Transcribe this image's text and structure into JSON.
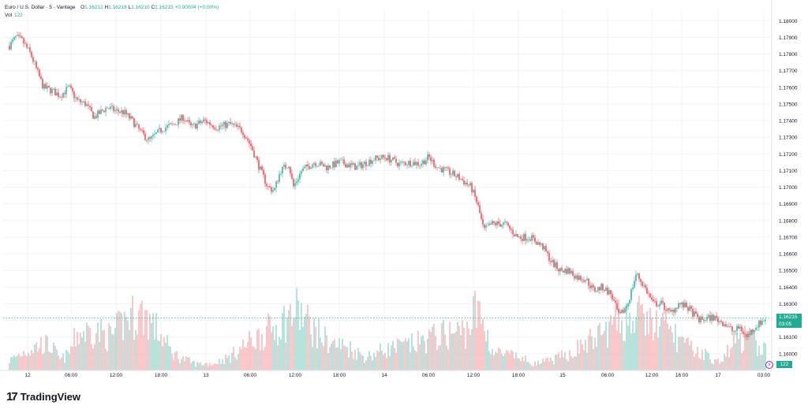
{
  "legend": {
    "symbol_title": "Euro / U.S. Dollar · 5 · Vantage",
    "open_label": "O",
    "open_value": "1.16212",
    "high_label": "H",
    "high_value": "1.16218",
    "low_label": "L",
    "low_value": "1.16210",
    "close_label": "C",
    "close_value": "1.16215",
    "change_value": "+0.00004 (+0.00%)",
    "volume_label": "Vol",
    "volume_value": "122"
  },
  "current_price": {
    "price": "1.16215",
    "countdown": "03:05",
    "volume": "122"
  },
  "branding": {
    "logo_mark": "17",
    "logo_text": "TradingView"
  },
  "colors": {
    "up": "#22ab94",
    "down": "#f23645",
    "up_vol": "#a7dcd3",
    "down_vol": "#f8b9bd",
    "grid": "#f0f3fa",
    "axis_text": "#131722",
    "last_price_line": "#22ab94",
    "flash_icon": "#9c27b0"
  },
  "icons": {
    "flash": "lightning-icon"
  },
  "chart_data": {
    "type": "candlestick",
    "title": "Euro / U.S. Dollar · 5 · Vantage",
    "xlabel": "",
    "ylabel": "",
    "y_ticks": [
      "1.18000",
      "1.17900",
      "1.17800",
      "1.17700",
      "1.17600",
      "1.17500",
      "1.17400",
      "1.17300",
      "1.17200",
      "1.17100",
      "1.17000",
      "1.16900",
      "1.16800",
      "1.16700",
      "1.16600",
      "1.16500",
      "1.16400",
      "1.16300",
      "1.16200",
      "1.16100",
      "1.16000"
    ],
    "y_range": [
      1.15985,
      1.18025
    ],
    "x_ticks": [
      "12",
      "06:00",
      "12:00",
      "18:00",
      "13",
      "06:00",
      "12:00",
      "18:00",
      "14",
      "06:00",
      "12:00",
      "18:00",
      "15",
      "06:00",
      "12:00",
      "16:00",
      "17",
      "03:00"
    ],
    "grid": true,
    "price_path": [
      [
        0,
        1.1785
      ],
      [
        1.5,
        1.179
      ],
      [
        3,
        1.1788
      ],
      [
        5,
        1.178
      ],
      [
        6.5,
        1.177
      ],
      [
        8,
        1.176
      ],
      [
        10,
        1.1758
      ],
      [
        12,
        1.1755
      ],
      [
        14,
        1.176
      ],
      [
        16,
        1.1752
      ],
      [
        18,
        1.175
      ],
      [
        20,
        1.1742
      ],
      [
        23,
        1.1748
      ],
      [
        25,
        1.1746
      ],
      [
        27,
        1.1745
      ],
      [
        29,
        1.174
      ],
      [
        31,
        1.1733
      ],
      [
        33,
        1.1728
      ],
      [
        36,
        1.1735
      ],
      [
        39,
        1.1738
      ],
      [
        41,
        1.1742
      ],
      [
        43,
        1.1736
      ],
      [
        46,
        1.174
      ],
      [
        49,
        1.1736
      ],
      [
        52,
        1.1738
      ],
      [
        55,
        1.1734
      ],
      [
        57,
        1.1725
      ],
      [
        59,
        1.1712
      ],
      [
        61,
        1.17
      ],
      [
        62.5,
        1.1698
      ],
      [
        64,
        1.171
      ],
      [
        66,
        1.1714
      ],
      [
        67,
        1.17
      ],
      [
        69,
        1.171
      ],
      [
        72,
        1.1715
      ],
      [
        75,
        1.1712
      ],
      [
        78,
        1.1715
      ],
      [
        82,
        1.1712
      ],
      [
        86,
        1.1717
      ],
      [
        89,
        1.1718
      ],
      [
        92,
        1.1714
      ],
      [
        95,
        1.1715
      ],
      [
        97,
        1.1714
      ],
      [
        99,
        1.1718
      ],
      [
        101,
        1.1712
      ],
      [
        103,
        1.171
      ],
      [
        106,
        1.1706
      ],
      [
        109,
        1.17
      ],
      [
        110.5,
        1.169
      ],
      [
        112,
        1.1674
      ],
      [
        114,
        1.1678
      ],
      [
        117,
        1.1678
      ],
      [
        120,
        1.167
      ],
      [
        123,
        1.167
      ],
      [
        126,
        1.1664
      ],
      [
        128,
        1.1655
      ],
      [
        130,
        1.165
      ],
      [
        132,
        1.165
      ],
      [
        134,
        1.1646
      ],
      [
        136,
        1.1645
      ],
      [
        138,
        1.1638
      ],
      [
        140,
        1.164
      ],
      [
        142,
        1.1636
      ],
      [
        144,
        1.1622
      ],
      [
        146,
        1.163
      ],
      [
        148,
        1.1648
      ],
      [
        150,
        1.164
      ],
      [
        152,
        1.163
      ],
      [
        154,
        1.163
      ],
      [
        156,
        1.1624
      ],
      [
        158,
        1.163
      ],
      [
        160,
        1.1628
      ],
      [
        163,
        1.162
      ],
      [
        166,
        1.1622
      ],
      [
        169,
        1.1618
      ],
      [
        171,
        1.1613
      ],
      [
        172.5,
        1.1616
      ],
      [
        174,
        1.161
      ],
      [
        176,
        1.1616
      ],
      [
        178.5,
        1.1621
      ]
    ],
    "volume_profile": [
      [
        0,
        0.15
      ],
      [
        4,
        0.3
      ],
      [
        8,
        0.4
      ],
      [
        10,
        0.35
      ],
      [
        12,
        0.15
      ],
      [
        14,
        0.25
      ],
      [
        16,
        0.55
      ],
      [
        20,
        0.6
      ],
      [
        24,
        0.5
      ],
      [
        28,
        0.8
      ],
      [
        32,
        0.85
      ],
      [
        36,
        0.5
      ],
      [
        38,
        0.3
      ],
      [
        40,
        0.2
      ],
      [
        44,
        0.1
      ],
      [
        48,
        0.1
      ],
      [
        52,
        0.2
      ],
      [
        56,
        0.4
      ],
      [
        60,
        0.55
      ],
      [
        64,
        0.7
      ],
      [
        68,
        0.9
      ],
      [
        72,
        0.6
      ],
      [
        76,
        0.4
      ],
      [
        80,
        0.35
      ],
      [
        84,
        0.2
      ],
      [
        88,
        0.3
      ],
      [
        92,
        0.35
      ],
      [
        96,
        0.4
      ],
      [
        100,
        0.5
      ],
      [
        104,
        0.55
      ],
      [
        108,
        0.6
      ],
      [
        110,
        0.9
      ],
      [
        112,
        0.7
      ],
      [
        114,
        0.3
      ],
      [
        116,
        0.25
      ],
      [
        120,
        0.2
      ],
      [
        124,
        0.1
      ],
      [
        128,
        0.15
      ],
      [
        132,
        0.25
      ],
      [
        136,
        0.4
      ],
      [
        140,
        0.55
      ],
      [
        144,
        0.75
      ],
      [
        148,
        0.8
      ],
      [
        152,
        0.7
      ],
      [
        156,
        0.6
      ],
      [
        160,
        0.35
      ],
      [
        164,
        0.25
      ],
      [
        168,
        0.1
      ],
      [
        170,
        0.35
      ],
      [
        174,
        0.5
      ],
      [
        178.5,
        0.3
      ]
    ],
    "last_price": 1.16215
  }
}
